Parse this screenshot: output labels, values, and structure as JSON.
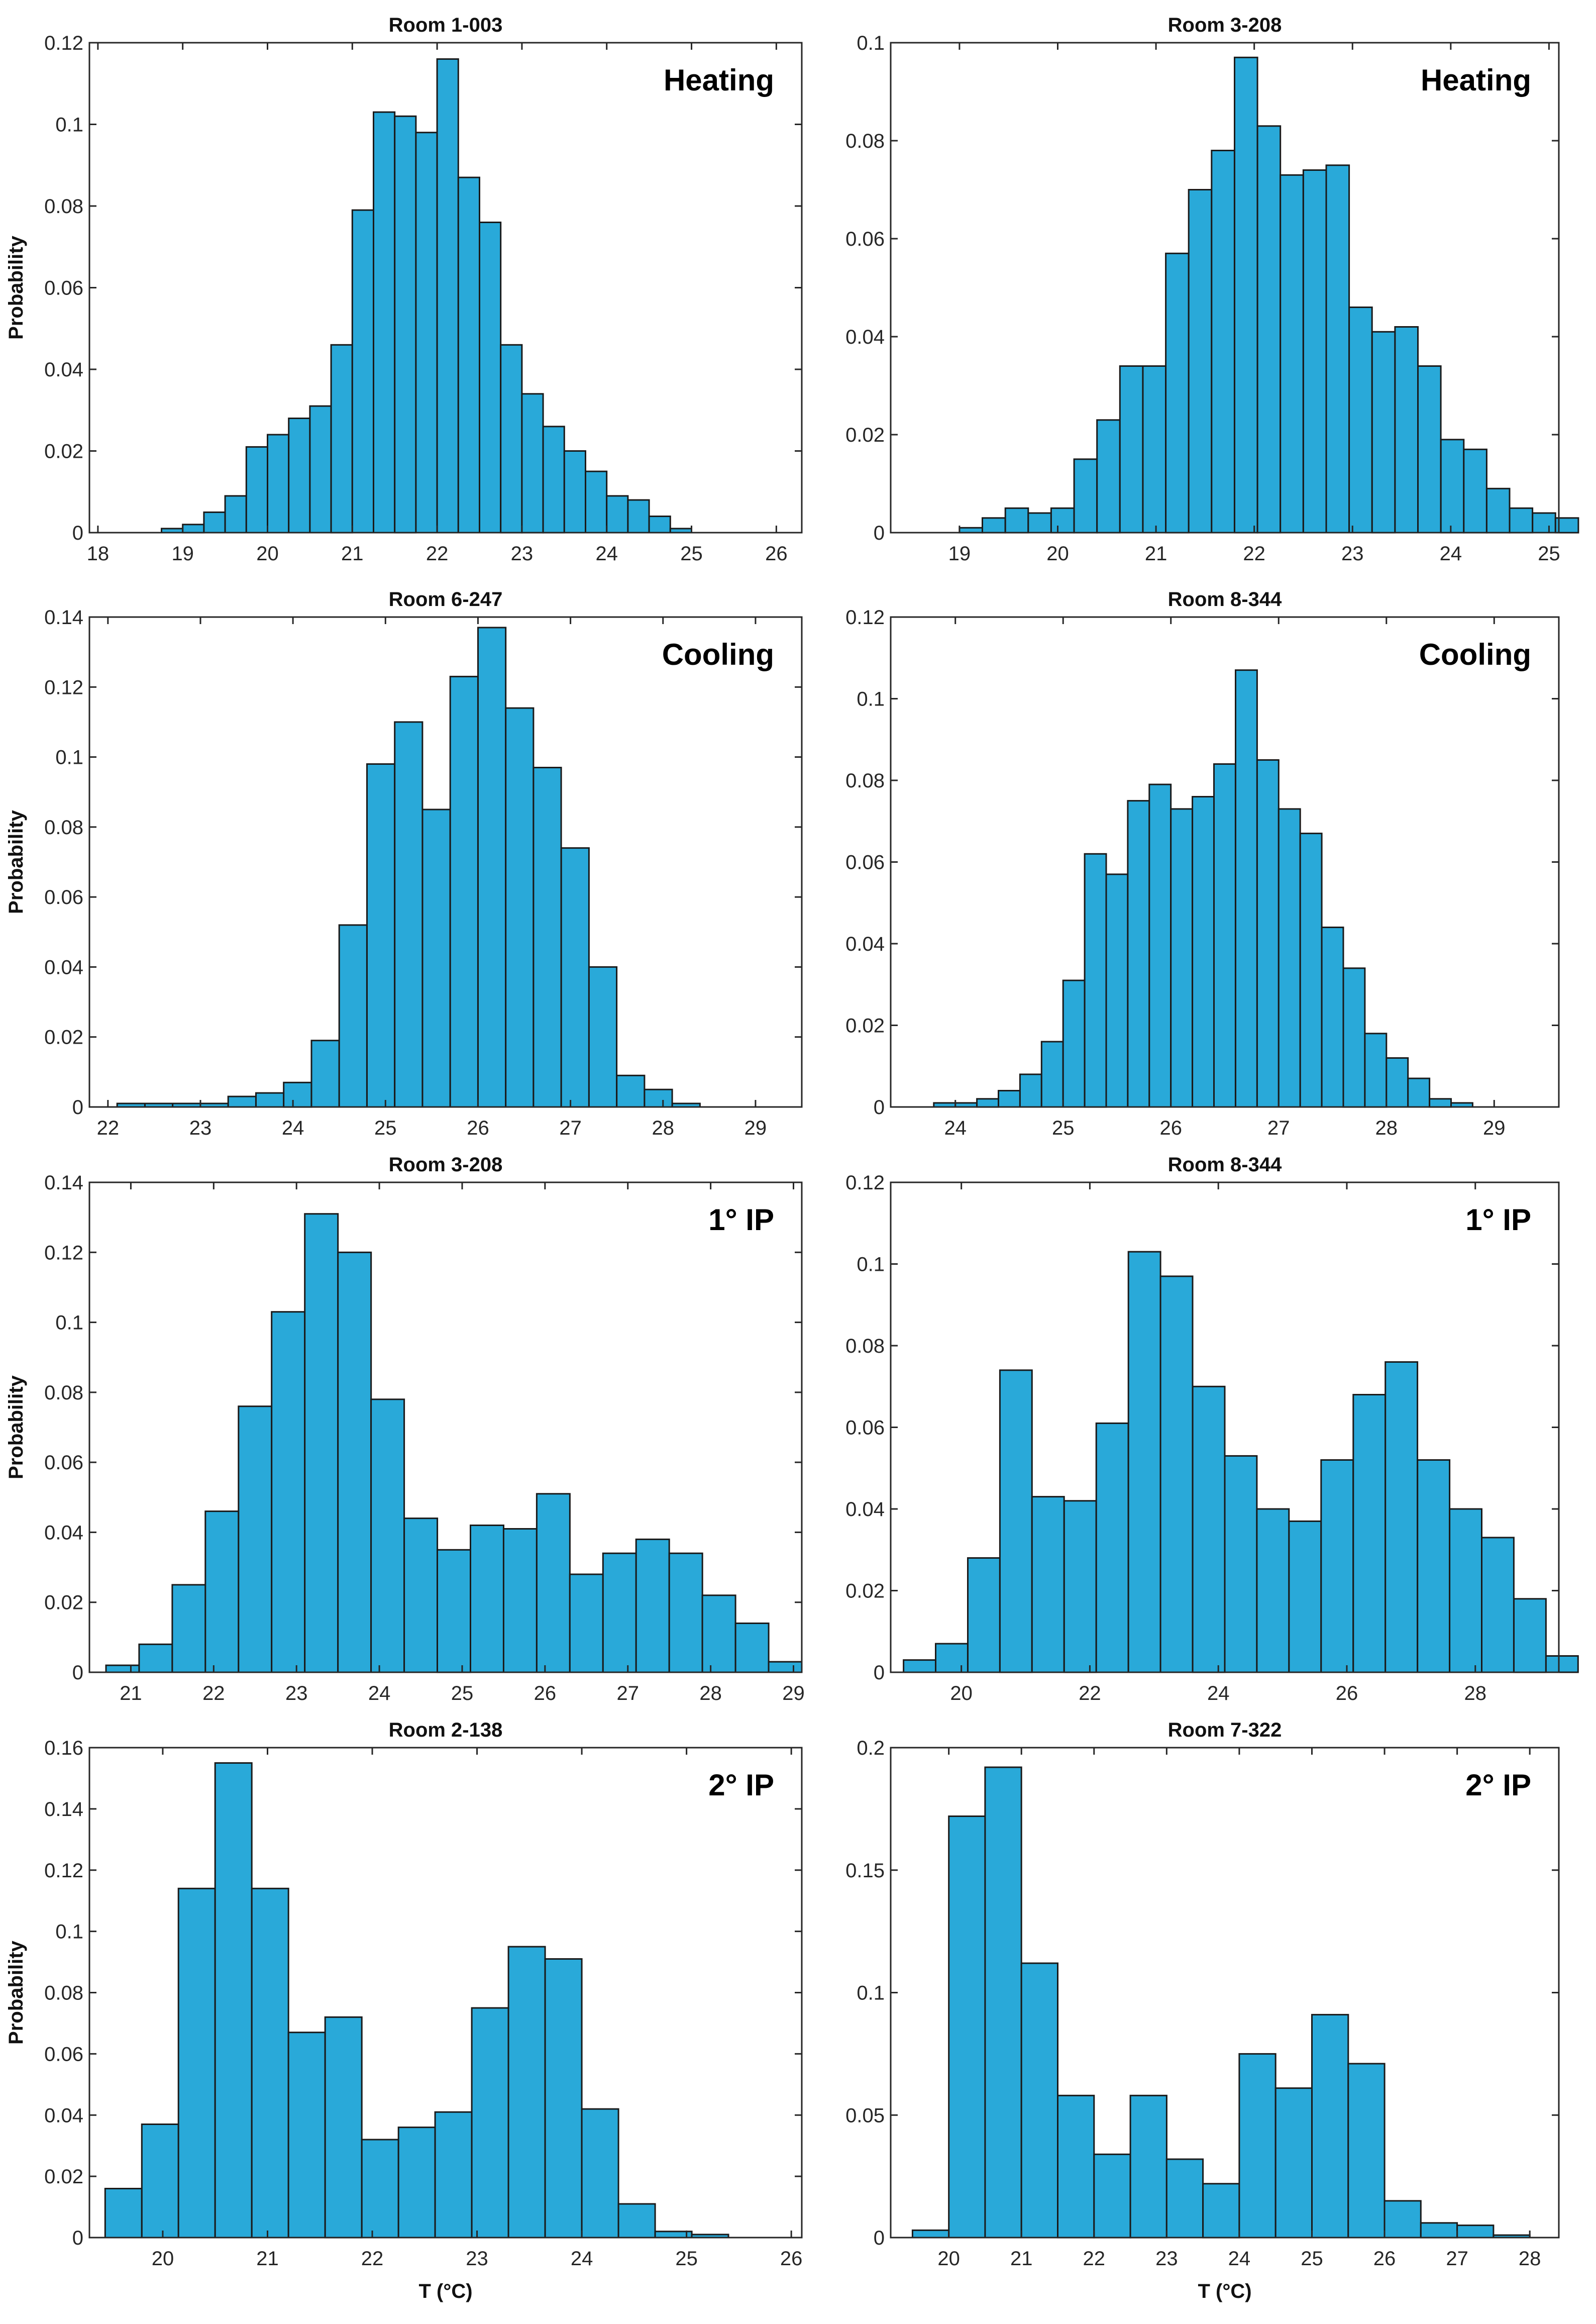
{
  "figure": {
    "xlabel": "T (°C)",
    "ylabel": "Probability",
    "bar_color": "#29A9D9",
    "edge_color": "#1a1a1a"
  },
  "chart_data": [
    {
      "type": "bar",
      "title": "Room 1-003",
      "label": "Heating",
      "xlim": [
        17.9,
        26.3
      ],
      "ylim": [
        0,
        0.12
      ],
      "xticks": [
        18,
        19,
        20,
        21,
        22,
        23,
        24,
        25,
        26
      ],
      "yticks": [
        0,
        0.02,
        0.04,
        0.06,
        0.08,
        0.1,
        0.12
      ],
      "ytick_labels": [
        "0",
        "0.02",
        "0.04",
        "0.06",
        "0.08",
        "0.1",
        "0.12"
      ],
      "bin_start": 18.75,
      "bin_width": 0.25,
      "values": [
        0.001,
        0.002,
        0.005,
        0.009,
        0.021,
        0.024,
        0.028,
        0.031,
        0.046,
        0.079,
        0.103,
        0.102,
        0.098,
        0.116,
        0.087,
        0.076,
        0.046,
        0.034,
        0.026,
        0.02,
        0.015,
        0.009,
        0.008,
        0.004,
        0.001
      ]
    },
    {
      "type": "bar",
      "title": "Room 3-208",
      "label": "Heating",
      "xlim": [
        18.3,
        25.1
      ],
      "ylim": [
        0,
        0.1
      ],
      "xticks": [
        19,
        20,
        21,
        22,
        23,
        24,
        25
      ],
      "yticks": [
        0,
        0.02,
        0.04,
        0.06,
        0.08,
        0.1
      ],
      "ytick_labels": [
        "0",
        "0.02",
        "0.04",
        "0.06",
        "0.08",
        "0.1"
      ],
      "bin_start": 19.0,
      "bin_width": 0.2333,
      "values": [
        0.001,
        0.003,
        0.005,
        0.004,
        0.005,
        0.015,
        0.023,
        0.034,
        0.034,
        0.057,
        0.07,
        0.078,
        0.097,
        0.083,
        0.073,
        0.074,
        0.075,
        0.046,
        0.041,
        0.042,
        0.034,
        0.019,
        0.017,
        0.009,
        0.005,
        0.004,
        0.003
      ]
    },
    {
      "type": "bar",
      "title": "Room 6-247",
      "label": "Cooling",
      "xlim": [
        21.8,
        29.5
      ],
      "ylim": [
        0,
        0.14
      ],
      "xticks": [
        22,
        23,
        24,
        25,
        26,
        27,
        28,
        29
      ],
      "yticks": [
        0,
        0.02,
        0.04,
        0.06,
        0.08,
        0.1,
        0.12,
        0.14
      ],
      "ytick_labels": [
        "0",
        "0.02",
        "0.04",
        "0.06",
        "0.08",
        "0.1",
        "0.12",
        "0.14"
      ],
      "bin_start": 22.1,
      "bin_width": 0.3,
      "values": [
        0.001,
        0.001,
        0.001,
        0.001,
        0.003,
        0.004,
        0.007,
        0.019,
        0.052,
        0.098,
        0.11,
        0.085,
        0.123,
        0.137,
        0.114,
        0.097,
        0.074,
        0.04,
        0.009,
        0.005,
        0.001
      ]
    },
    {
      "type": "bar",
      "title": "Room 8-344",
      "label": "Cooling",
      "xlim": [
        23.4,
        29.6
      ],
      "ylim": [
        0,
        0.12
      ],
      "xticks": [
        24,
        25,
        26,
        27,
        28,
        29
      ],
      "yticks": [
        0,
        0.02,
        0.04,
        0.06,
        0.08,
        0.1,
        0.12
      ],
      "ytick_labels": [
        "0",
        "0.02",
        "0.04",
        "0.06",
        "0.08",
        "0.1",
        "0.12"
      ],
      "bin_start": 23.8,
      "bin_width": 0.2,
      "values": [
        0.001,
        0.001,
        0.002,
        0.004,
        0.008,
        0.016,
        0.031,
        0.062,
        0.057,
        0.075,
        0.079,
        0.073,
        0.076,
        0.084,
        0.107,
        0.085,
        0.073,
        0.067,
        0.044,
        0.034,
        0.018,
        0.012,
        0.007,
        0.002,
        0.001
      ]
    },
    {
      "type": "bar",
      "title": "Room 3-208",
      "label": "1° IP",
      "xlim": [
        20.5,
        29.1
      ],
      "ylim": [
        0,
        0.14
      ],
      "xticks": [
        21,
        22,
        23,
        24,
        25,
        26,
        27,
        28,
        29
      ],
      "yticks": [
        0,
        0.02,
        0.04,
        0.06,
        0.08,
        0.1,
        0.12,
        0.14
      ],
      "ytick_labels": [
        "0",
        "0.02",
        "0.04",
        "0.06",
        "0.08",
        "0.1",
        "0.12",
        "0.14"
      ],
      "bin_start": 20.7,
      "bin_width": 0.4,
      "values": [
        0.002,
        0.008,
        0.025,
        0.046,
        0.076,
        0.103,
        0.131,
        0.12,
        0.078,
        0.044,
        0.035,
        0.042,
        0.041,
        0.051,
        0.028,
        0.034,
        0.038,
        0.034,
        0.022,
        0.014,
        0.003
      ]
    },
    {
      "type": "bar",
      "title": "Room 8-344",
      "label": "1° IP",
      "xlim": [
        18.9,
        29.3
      ],
      "ylim": [
        0,
        0.12
      ],
      "xticks": [
        20,
        22,
        24,
        26,
        28
      ],
      "yticks": [
        0,
        0.02,
        0.04,
        0.06,
        0.08,
        0.1,
        0.12
      ],
      "ytick_labels": [
        "0",
        "0.02",
        "0.04",
        "0.06",
        "0.08",
        "0.1",
        "0.12"
      ],
      "bin_start": 19.1,
      "bin_width": 0.5,
      "values": [
        0.003,
        0.007,
        0.028,
        0.074,
        0.043,
        0.042,
        0.061,
        0.103,
        0.097,
        0.07,
        0.053,
        0.04,
        0.037,
        0.052,
        0.068,
        0.076,
        0.052,
        0.04,
        0.033,
        0.018,
        0.004
      ]
    },
    {
      "type": "bar",
      "title": "Room 2-138",
      "label": "2° IP",
      "xlim": [
        19.3,
        26.1
      ],
      "ylim": [
        0,
        0.16
      ],
      "xticks": [
        20,
        21,
        22,
        23,
        24,
        25,
        26
      ],
      "yticks": [
        0,
        0.02,
        0.04,
        0.06,
        0.08,
        0.1,
        0.12,
        0.14,
        0.16
      ],
      "ytick_labels": [
        "0",
        "0.02",
        "0.04",
        "0.06",
        "0.08",
        "0.1",
        "0.12",
        "0.14",
        "0.16"
      ],
      "bin_start": 19.45,
      "bin_width": 0.35,
      "values": [
        0.016,
        0.037,
        0.114,
        0.155,
        0.114,
        0.067,
        0.072,
        0.032,
        0.036,
        0.041,
        0.075,
        0.095,
        0.091,
        0.042,
        0.011,
        0.002,
        0.001
      ]
    },
    {
      "type": "bar",
      "title": "Room 7-322",
      "label": "2° IP",
      "xlim": [
        19.2,
        28.4
      ],
      "ylim": [
        0,
        0.2
      ],
      "xticks": [
        20,
        21,
        22,
        23,
        24,
        25,
        26,
        27,
        28
      ],
      "yticks": [
        0,
        0.05,
        0.1,
        0.15,
        0.2
      ],
      "ytick_labels": [
        "0",
        "0.05",
        "0.1",
        "0.15",
        "0.2"
      ],
      "bin_start": 19.5,
      "bin_width": 0.5,
      "values": [
        0.003,
        0.172,
        0.192,
        0.112,
        0.058,
        0.034,
        0.058,
        0.032,
        0.022,
        0.075,
        0.061,
        0.091,
        0.071,
        0.015,
        0.006,
        0.005,
        0.001
      ]
    }
  ]
}
